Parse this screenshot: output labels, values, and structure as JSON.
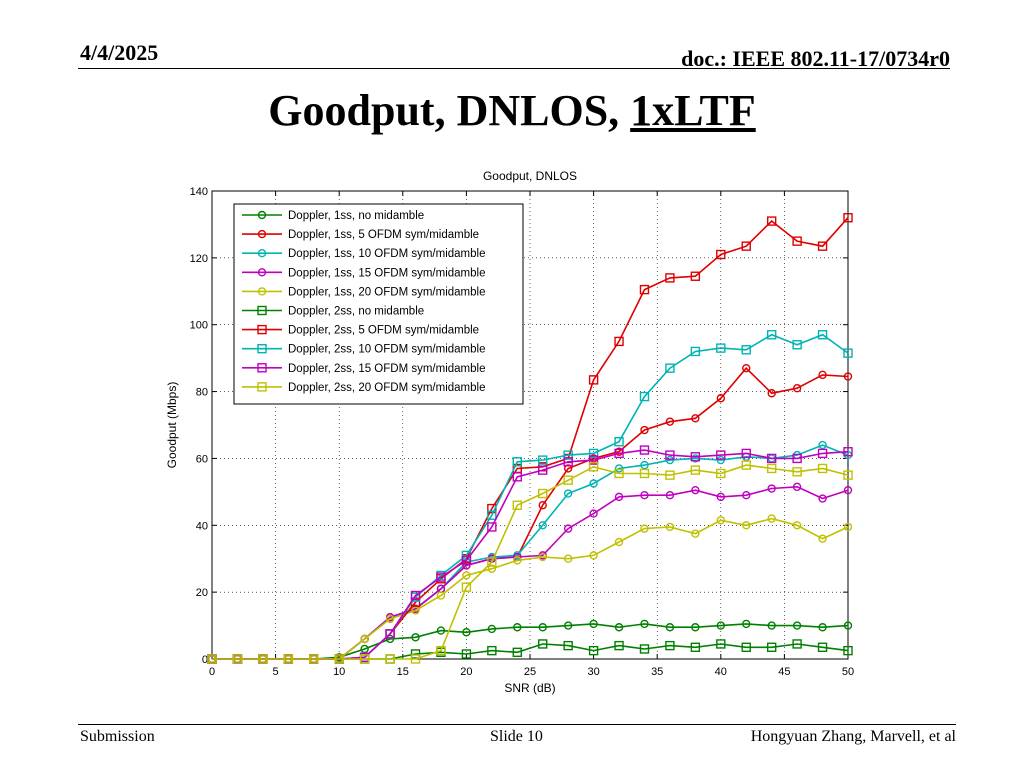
{
  "header": {
    "date": "4/4/2025",
    "doc": "doc.: IEEE 802.11-17/0734r0"
  },
  "title": {
    "main": "Goodput, DNLOS, ",
    "underlined": "1xLTF"
  },
  "footer": {
    "left": "Submission",
    "center": "Slide 10",
    "right": "Hongyuan Zhang, Marvell, et al"
  },
  "colors": {
    "green": "#008000",
    "red": "#e00000",
    "cyan": "#00b4b4",
    "magenta": "#c000c0",
    "olive": "#c0c000"
  },
  "chart_data": {
    "type": "line",
    "title": "Goodput, DNLOS",
    "xlabel": "SNR (dB)",
    "ylabel": "Goodput (Mbps)",
    "xlim": [
      0,
      50
    ],
    "ylim": [
      0,
      140
    ],
    "xticks": [
      0,
      5,
      10,
      15,
      20,
      25,
      30,
      35,
      40,
      45,
      50
    ],
    "yticks": [
      0,
      20,
      40,
      60,
      80,
      100,
      120,
      140
    ],
    "grid": true,
    "legend_position": "top-left",
    "x": [
      0,
      2,
      4,
      6,
      8,
      10,
      12,
      14,
      16,
      18,
      20,
      22,
      24,
      26,
      28,
      30,
      32,
      34,
      36,
      38,
      40,
      42,
      44,
      46,
      48,
      50
    ],
    "series": [
      {
        "name": "Doppler, 1ss, no midamble",
        "color": "#008000",
        "marker": "circle",
        "values": [
          0,
          0,
          0,
          0,
          0,
          0.5,
          3,
          6,
          6.5,
          8.5,
          8,
          9,
          9.5,
          9.5,
          10,
          10.5,
          9.5,
          10.5,
          9.5,
          9.5,
          10,
          10.5,
          10,
          10,
          9.5,
          10
        ]
      },
      {
        "name": "Doppler, 1ss, 5 OFDM sym/midamble",
        "color": "#e00000",
        "marker": "circle",
        "values": [
          0,
          0,
          0,
          0,
          0,
          0,
          6,
          12.5,
          15,
          21,
          28,
          30,
          30.5,
          46,
          57,
          60,
          62,
          68.5,
          71,
          72,
          78,
          87,
          79.5,
          81,
          85,
          84.5
        ]
      },
      {
        "name": "Doppler, 1ss, 10 OFDM sym/midamble",
        "color": "#00b4b4",
        "marker": "circle",
        "values": [
          0,
          0,
          0,
          0,
          0,
          0,
          6,
          12.5,
          15,
          21,
          29,
          30.5,
          31,
          40,
          49.5,
          52.5,
          57,
          58,
          59.5,
          60,
          59.5,
          60.5,
          60,
          61,
          64,
          61
        ]
      },
      {
        "name": "Doppler, 1ss, 15 OFDM sym/midamble",
        "color": "#c000c0",
        "marker": "circle",
        "values": [
          0,
          0,
          0,
          0,
          0,
          0,
          6,
          12.5,
          15,
          21,
          28,
          30,
          30.5,
          31,
          39,
          43.5,
          48.5,
          49,
          49,
          50.5,
          48.5,
          49,
          51,
          51.5,
          48,
          50.5
        ]
      },
      {
        "name": "Doppler, 1ss, 20 OFDM sym/midamble",
        "color": "#c0c000",
        "marker": "circle",
        "values": [
          0,
          0,
          0,
          0,
          0,
          0,
          6,
          12,
          14.5,
          19,
          25,
          27,
          29.5,
          30.5,
          30,
          31,
          35,
          39,
          39.5,
          37.5,
          41.5,
          40,
          42,
          40,
          36,
          39.5
        ]
      },
      {
        "name": "Doppler, 2ss, no midamble",
        "color": "#008000",
        "marker": "square",
        "values": [
          0,
          0,
          0,
          0,
          0,
          0,
          0,
          0,
          1.5,
          2,
          1.5,
          2.5,
          2,
          4.5,
          4,
          2.5,
          4,
          3,
          4,
          3.5,
          4.5,
          3.5,
          3.5,
          4.5,
          3.5,
          2.5
        ]
      },
      {
        "name": "Doppler, 2ss, 5 OFDM sym/midamble",
        "color": "#e00000",
        "marker": "square",
        "values": [
          0,
          0,
          0,
          0,
          0,
          0,
          0.5,
          7.5,
          17,
          24,
          30,
          45,
          57,
          57.5,
          60,
          83.5,
          95,
          110.5,
          114,
          114.5,
          121,
          123.5,
          131,
          125,
          123.5,
          132
        ]
      },
      {
        "name": "Doppler, 2ss, 10 OFDM sym/midamble",
        "color": "#00b4b4",
        "marker": "square",
        "values": [
          0,
          0,
          0,
          0,
          0,
          0,
          0.5,
          7.5,
          18.5,
          25,
          31,
          43,
          59,
          59.5,
          61,
          61.5,
          65,
          78.5,
          87,
          92,
          93,
          92.5,
          97,
          94,
          97,
          91.5
        ]
      },
      {
        "name": "Doppler, 2ss, 15 OFDM sym/midamble",
        "color": "#c000c0",
        "marker": "square",
        "values": [
          0,
          0,
          0,
          0,
          0,
          0,
          0.5,
          7.5,
          19,
          24.5,
          29.5,
          39.5,
          54.5,
          56.5,
          59,
          59.5,
          61.5,
          62.5,
          61,
          60.5,
          61,
          61.5,
          60,
          60,
          61.5,
          62
        ]
      },
      {
        "name": "Doppler, 2ss, 20 OFDM sym/midamble",
        "color": "#c0c000",
        "marker": "square",
        "values": [
          0,
          0,
          0,
          0,
          0,
          0,
          0,
          0,
          0,
          2.5,
          21.5,
          29,
          46,
          49.5,
          53.5,
          57.5,
          55.5,
          55.5,
          55,
          56.5,
          55.5,
          58,
          57,
          56,
          57,
          55
        ]
      }
    ]
  }
}
